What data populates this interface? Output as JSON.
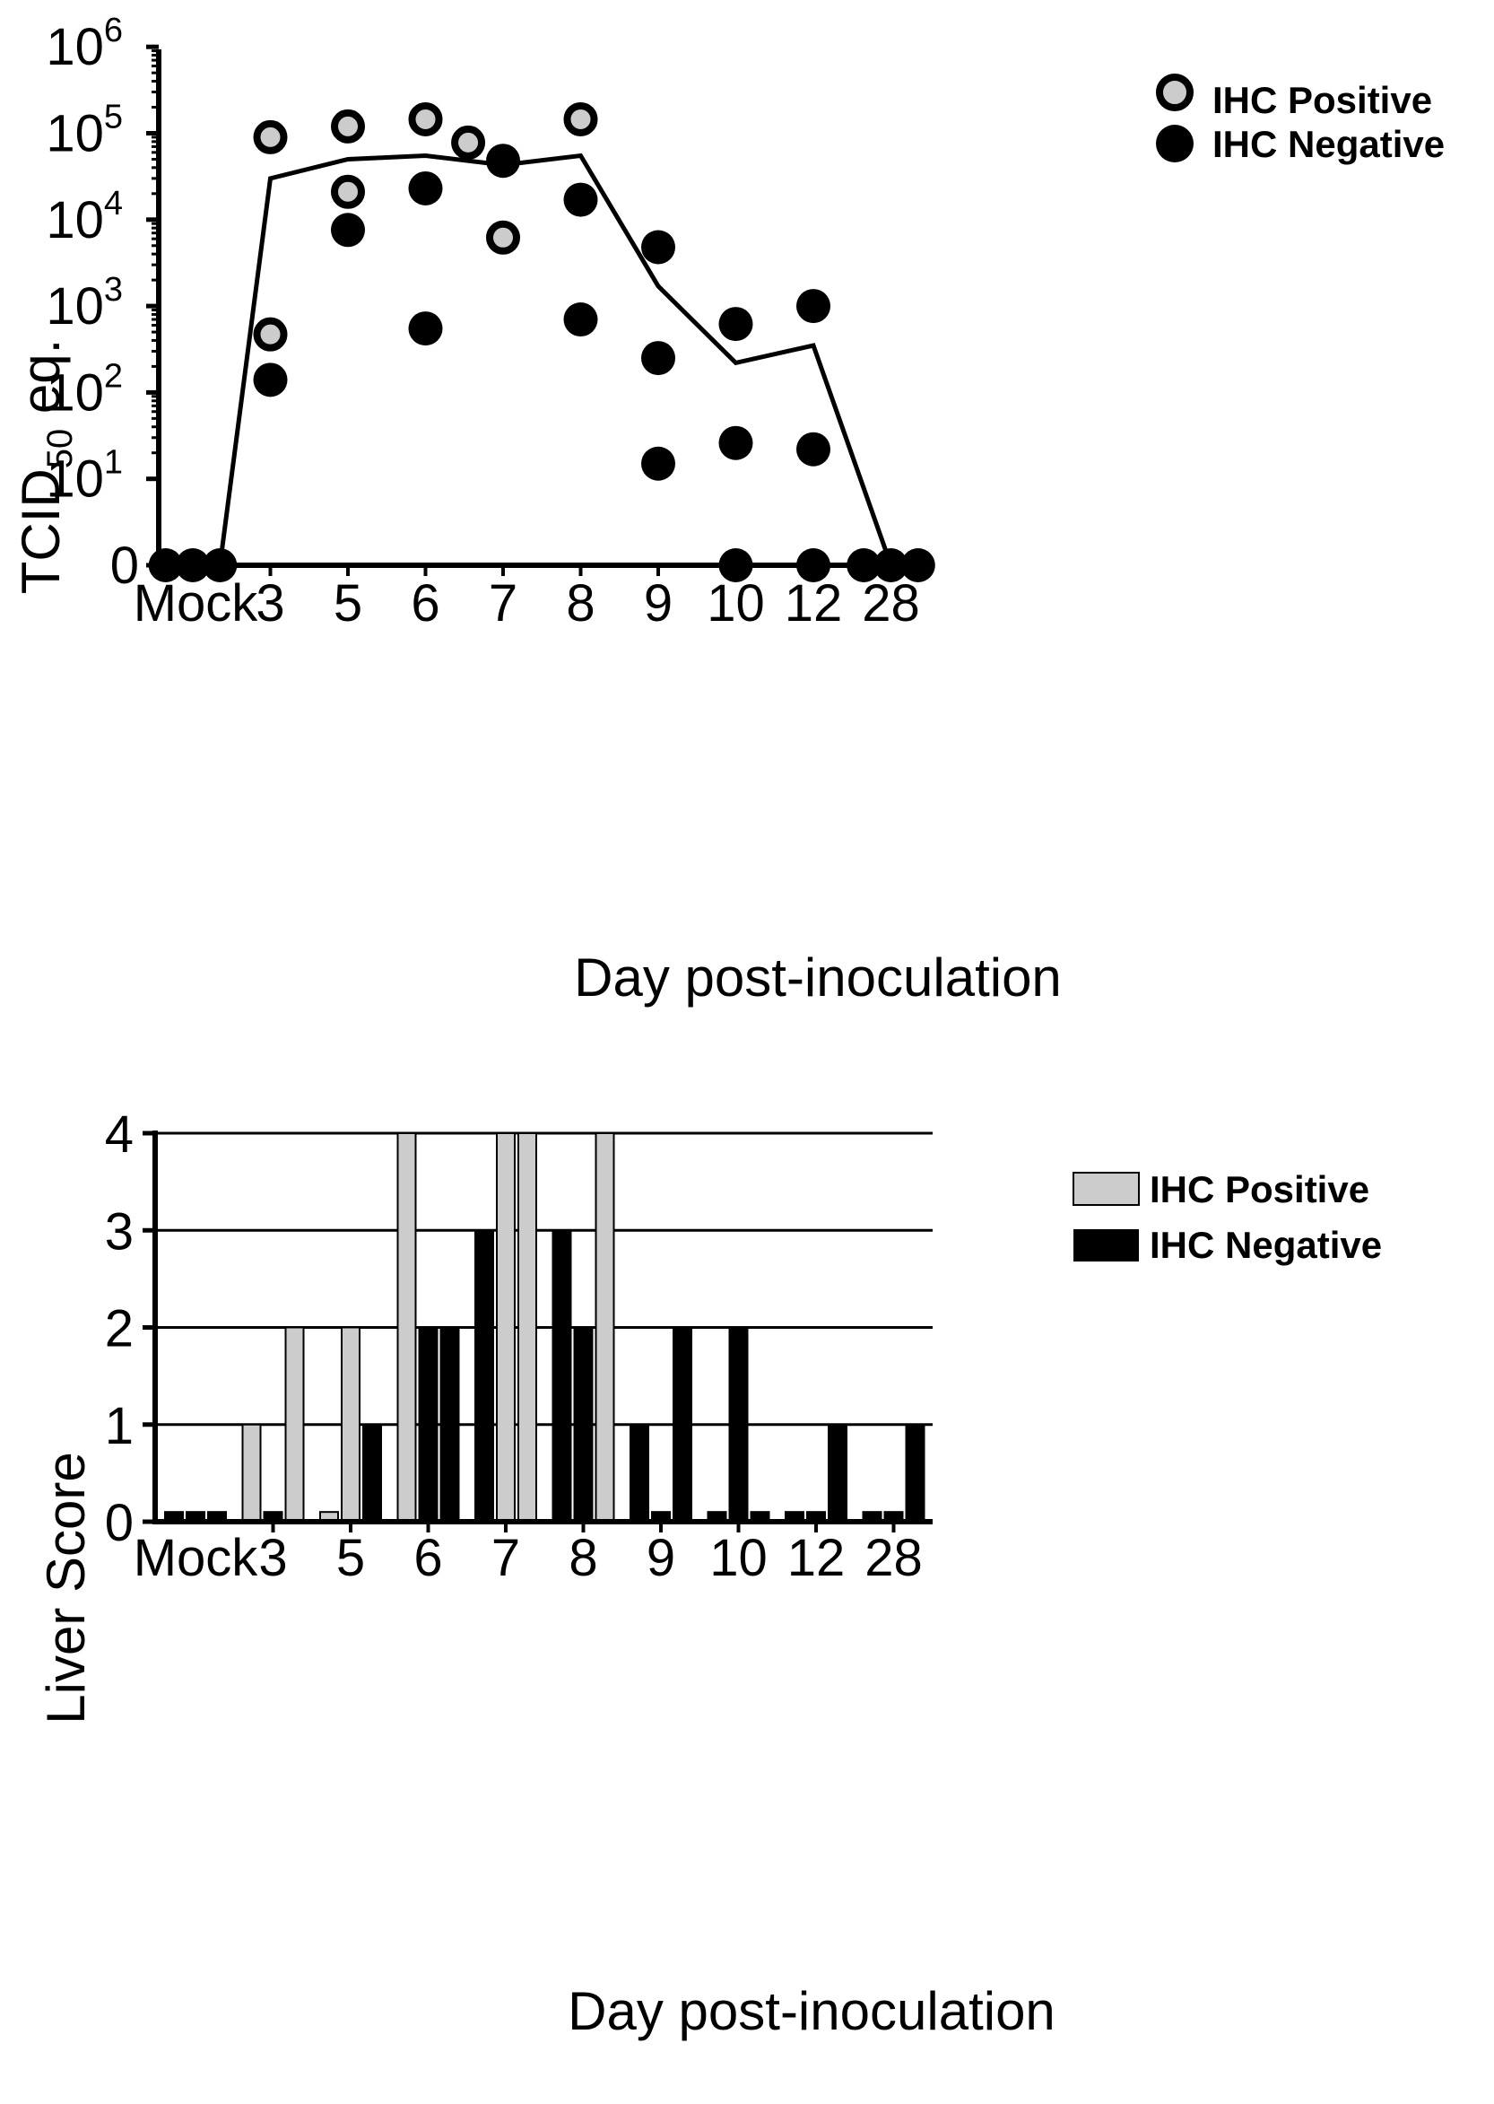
{
  "colors": {
    "ihc_positive": "#cccccc",
    "ihc_negative": "#000000",
    "axis": "#000000"
  },
  "chart_data": [
    {
      "type": "scatter",
      "ylabel_main": "TCID",
      "ylabel_sub": "50",
      "ylabel_suffix": " eq.",
      "xlabel": "Day post-inoculation",
      "yscale": "log",
      "ylim": [
        0,
        1000000
      ],
      "y_tick_labels": [
        {
          "base": "0",
          "exp": ""
        },
        {
          "base": "10",
          "exp": "1"
        },
        {
          "base": "10",
          "exp": "2"
        },
        {
          "base": "10",
          "exp": "3"
        },
        {
          "base": "10",
          "exp": "4"
        },
        {
          "base": "10",
          "exp": "5"
        },
        {
          "base": "10",
          "exp": "6"
        }
      ],
      "categories": [
        "Mock",
        "3",
        "5",
        "6",
        "7",
        "8",
        "9",
        "10",
        "12",
        "28"
      ],
      "legend": [
        {
          "key": "positive",
          "label": "IHC Positive"
        },
        {
          "key": "negative",
          "label": "IHC Negative"
        }
      ],
      "legend_position": "top-right",
      "points": [
        {
          "day": "Mock",
          "offset": -0.35,
          "value": 0,
          "ihc": "negative"
        },
        {
          "day": "Mock",
          "offset": 0,
          "value": 0,
          "ihc": "negative"
        },
        {
          "day": "Mock",
          "offset": 0.35,
          "value": 0,
          "ihc": "negative"
        },
        {
          "day": "3",
          "offset": 0,
          "value": 90000,
          "ihc": "positive"
        },
        {
          "day": "3",
          "offset": 0,
          "value": 470,
          "ihc": "positive"
        },
        {
          "day": "3",
          "offset": 0,
          "value": 140,
          "ihc": "negative"
        },
        {
          "day": "5",
          "offset": 0,
          "value": 120000,
          "ihc": "positive"
        },
        {
          "day": "5",
          "offset": 0,
          "value": 21000,
          "ihc": "positive"
        },
        {
          "day": "5",
          "offset": 0,
          "value": 7600,
          "ihc": "negative"
        },
        {
          "day": "6",
          "offset": 0,
          "value": 145000,
          "ihc": "positive"
        },
        {
          "day": "6",
          "offset": 0,
          "value": 23000,
          "ihc": "negative"
        },
        {
          "day": "6",
          "offset": 0,
          "value": 550,
          "ihc": "negative"
        },
        {
          "day": "7",
          "offset": -0.45,
          "value": 78000,
          "ihc": "positive"
        },
        {
          "day": "7",
          "offset": 0,
          "value": 48000,
          "ihc": "negative"
        },
        {
          "day": "7",
          "offset": 0,
          "value": 6200,
          "ihc": "positive"
        },
        {
          "day": "8",
          "offset": 0,
          "value": 145000,
          "ihc": "positive"
        },
        {
          "day": "8",
          "offset": 0,
          "value": 17000,
          "ihc": "negative"
        },
        {
          "day": "8",
          "offset": 0,
          "value": 700,
          "ihc": "negative"
        },
        {
          "day": "9",
          "offset": 0,
          "value": 4800,
          "ihc": "negative"
        },
        {
          "day": "9",
          "offset": 0,
          "value": 250,
          "ihc": "negative"
        },
        {
          "day": "9",
          "offset": 0,
          "value": 15,
          "ihc": "negative"
        },
        {
          "day": "10",
          "offset": 0,
          "value": 620,
          "ihc": "negative"
        },
        {
          "day": "10",
          "offset": 0,
          "value": 26,
          "ihc": "negative"
        },
        {
          "day": "10",
          "offset": 0,
          "value": 0,
          "ihc": "negative"
        },
        {
          "day": "12",
          "offset": 0,
          "value": 1000,
          "ihc": "negative"
        },
        {
          "day": "12",
          "offset": 0,
          "value": 22,
          "ihc": "negative"
        },
        {
          "day": "12",
          "offset": 0,
          "value": 0,
          "ihc": "negative"
        },
        {
          "day": "28",
          "offset": -0.35,
          "value": 0,
          "ihc": "negative"
        },
        {
          "day": "28",
          "offset": 0,
          "value": 0,
          "ihc": "negative"
        },
        {
          "day": "28",
          "offset": 0.35,
          "value": 0,
          "ihc": "negative"
        }
      ],
      "mean_line": [
        {
          "day": "Mock",
          "offset": 0.35,
          "value": 0
        },
        {
          "day": "3",
          "offset": 0,
          "value": 30000
        },
        {
          "day": "5",
          "offset": 0,
          "value": 50000
        },
        {
          "day": "6",
          "offset": 0,
          "value": 55000
        },
        {
          "day": "7",
          "offset": 0,
          "value": 43000
        },
        {
          "day": "8",
          "offset": 0,
          "value": 55000
        },
        {
          "day": "9",
          "offset": 0,
          "value": 1700
        },
        {
          "day": "10",
          "offset": 0,
          "value": 220
        },
        {
          "day": "12",
          "offset": 0,
          "value": 350
        },
        {
          "day": "28",
          "offset": 0,
          "value": 0
        }
      ]
    },
    {
      "type": "bar",
      "ylabel": "Liver Score",
      "xlabel": "Day post-inoculation",
      "ylim": [
        0,
        4
      ],
      "y_ticks": [
        0,
        1,
        2,
        3,
        4
      ],
      "grid": true,
      "categories": [
        "Mock",
        "3",
        "5",
        "6",
        "7",
        "8",
        "9",
        "10",
        "12",
        "28"
      ],
      "legend": [
        {
          "key": "positive",
          "label": "IHC Positive"
        },
        {
          "key": "negative",
          "label": "IHC Negative"
        }
      ],
      "legend_position": "top-right",
      "bars": [
        {
          "day": "Mock",
          "slot": -1,
          "value": 0.1,
          "ihc": "negative"
        },
        {
          "day": "Mock",
          "slot": 0,
          "value": 0.1,
          "ihc": "negative"
        },
        {
          "day": "Mock",
          "slot": 1,
          "value": 0.1,
          "ihc": "negative"
        },
        {
          "day": "3",
          "slot": -1,
          "value": 1,
          "ihc": "positive"
        },
        {
          "day": "3",
          "slot": 0,
          "value": 0.1,
          "ihc": "negative"
        },
        {
          "day": "3",
          "slot": 1,
          "value": 2,
          "ihc": "positive"
        },
        {
          "day": "5",
          "slot": -1,
          "value": 0.1,
          "ihc": "positive"
        },
        {
          "day": "5",
          "slot": 0,
          "value": 2,
          "ihc": "positive"
        },
        {
          "day": "5",
          "slot": 1,
          "value": 1,
          "ihc": "negative"
        },
        {
          "day": "6",
          "slot": -1,
          "value": 4,
          "ihc": "positive"
        },
        {
          "day": "6",
          "slot": 0,
          "value": 2,
          "ihc": "negative"
        },
        {
          "day": "6",
          "slot": 1,
          "value": 2,
          "ihc": "negative"
        },
        {
          "day": "7",
          "slot": -1,
          "value": 3,
          "ihc": "negative"
        },
        {
          "day": "7",
          "slot": 0,
          "value": 4,
          "ihc": "positive"
        },
        {
          "day": "7",
          "slot": 1,
          "value": 4,
          "ihc": "positive"
        },
        {
          "day": "8",
          "slot": -1,
          "value": 3,
          "ihc": "negative"
        },
        {
          "day": "8",
          "slot": 0,
          "value": 2,
          "ihc": "negative"
        },
        {
          "day": "8",
          "slot": 1,
          "value": 4,
          "ihc": "positive"
        },
        {
          "day": "9",
          "slot": -1,
          "value": 1,
          "ihc": "negative"
        },
        {
          "day": "9",
          "slot": 0,
          "value": 0.1,
          "ihc": "negative"
        },
        {
          "day": "9",
          "slot": 1,
          "value": 2,
          "ihc": "negative"
        },
        {
          "day": "10",
          "slot": -1,
          "value": 0.1,
          "ihc": "negative"
        },
        {
          "day": "10",
          "slot": 0,
          "value": 2,
          "ihc": "negative"
        },
        {
          "day": "10",
          "slot": 1,
          "value": 0.1,
          "ihc": "negative"
        },
        {
          "day": "12",
          "slot": -1,
          "value": 0.1,
          "ihc": "negative"
        },
        {
          "day": "12",
          "slot": 0,
          "value": 0.1,
          "ihc": "negative"
        },
        {
          "day": "12",
          "slot": 1,
          "value": 1,
          "ihc": "negative"
        },
        {
          "day": "28",
          "slot": -1,
          "value": 0.1,
          "ihc": "negative"
        },
        {
          "day": "28",
          "slot": 0,
          "value": 0.1,
          "ihc": "negative"
        },
        {
          "day": "28",
          "slot": 1,
          "value": 1,
          "ihc": "negative"
        }
      ]
    }
  ]
}
